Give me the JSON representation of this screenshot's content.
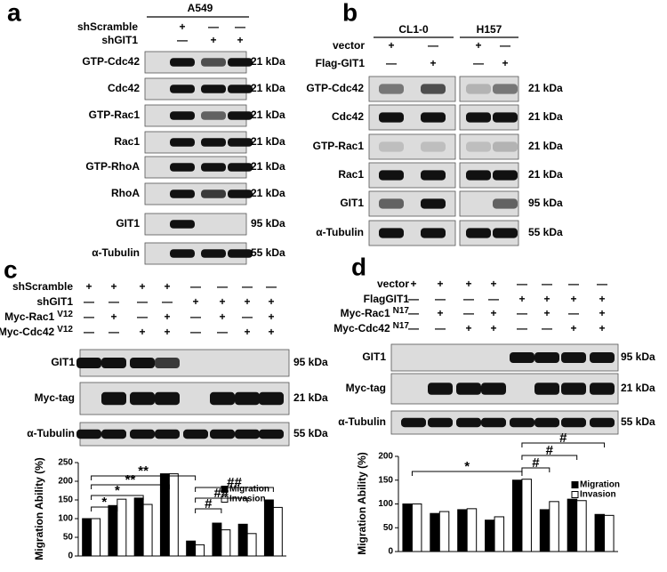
{
  "panels": {
    "a": {
      "letter": "a",
      "header": "A549",
      "conditions": [
        {
          "label": "shScramble",
          "signs": [
            "+",
            "—",
            "—"
          ]
        },
        {
          "label": "shGIT1",
          "signs": [
            "—",
            "+",
            "+"
          ]
        }
      ],
      "blots": [
        {
          "label": "GTP-Cdc42",
          "size": "21 kDa"
        },
        {
          "label": "Cdc42",
          "size": "21 kDa"
        },
        {
          "label": "GTP-Rac1",
          "size": "21 kDa"
        },
        {
          "label": "Rac1",
          "size": "21 kDa"
        },
        {
          "label": "GTP-RhoA",
          "size": "21 kDa"
        },
        {
          "label": "RhoA",
          "size": "21 kDa"
        },
        {
          "label": "GIT1",
          "size": "95 kDa"
        },
        {
          "label": "α-Tubulin",
          "size": "55 kDa"
        }
      ]
    },
    "b": {
      "letter": "b",
      "groups": [
        "CL1-0",
        "H157"
      ],
      "conditions": [
        {
          "label": "vector",
          "signs": [
            "+",
            "—",
            "+",
            "—"
          ]
        },
        {
          "label": "Flag-GIT1",
          "signs": [
            "—",
            "+",
            "—",
            "+"
          ]
        }
      ],
      "blots": [
        {
          "label": "GTP-Cdc42",
          "size": "21 kDa"
        },
        {
          "label": "Cdc42",
          "size": "21 kDa"
        },
        {
          "label": "GTP-Rac1",
          "size": "21 kDa"
        },
        {
          "label": "Rac1",
          "size": "21 kDa"
        },
        {
          "label": "GIT1",
          "size": "95 kDa"
        },
        {
          "label": "α-Tubulin",
          "size": "55 kDa"
        }
      ]
    },
    "c": {
      "letter": "c",
      "conditions": [
        {
          "label": "shScramble",
          "signs": [
            "+",
            "+",
            "+",
            "+",
            "—",
            "—",
            "—",
            "—"
          ]
        },
        {
          "label": "shGIT1",
          "signs": [
            "—",
            "—",
            "—",
            "—",
            "+",
            "+",
            "+",
            "+"
          ]
        },
        {
          "label": "Myc-Rac1",
          "sup": "V12",
          "signs": [
            "—",
            "+",
            "—",
            "+",
            "—",
            "+",
            "—",
            "+"
          ]
        },
        {
          "label": "Myc-Cdc42",
          "sup": "V12",
          "signs": [
            "—",
            "—",
            "+",
            "+",
            "—",
            "—",
            "+",
            "+"
          ]
        }
      ],
      "blots": [
        {
          "label": "GIT1",
          "size": "95 kDa"
        },
        {
          "label": "Myc-tag",
          "size": "21 kDa"
        },
        {
          "label": "α-Tubulin",
          "size": "55 kDa"
        }
      ]
    },
    "d": {
      "letter": "d",
      "conditions": [
        {
          "label": "vector",
          "signs": [
            "+",
            "+",
            "+",
            "+",
            "—",
            "—",
            "—",
            "—"
          ]
        },
        {
          "label": "FlagGIT1",
          "signs": [
            "—",
            "—",
            "—",
            "—",
            "+",
            "+",
            "+",
            "+"
          ]
        },
        {
          "label": "Myc-Rac1",
          "sup": "N17",
          "signs": [
            "—",
            "+",
            "—",
            "+",
            "—",
            "+",
            "—",
            "+"
          ]
        },
        {
          "label": "Myc-Cdc42",
          "sup": "N17",
          "signs": [
            "—",
            "—",
            "+",
            "+",
            "—",
            "—",
            "+",
            "+"
          ]
        }
      ],
      "blots": [
        {
          "label": "GIT1",
          "size": "95 kDa"
        },
        {
          "label": "Myc-tag",
          "size": "21 kDa"
        },
        {
          "label": "α-Tubulin",
          "size": "55 kDa"
        }
      ]
    }
  },
  "chart_data": [
    {
      "type": "bar",
      "y_label": "Migration Ability (%)",
      "ylim": [
        0,
        250
      ],
      "yticks": [
        0,
        50,
        100,
        150,
        200,
        250
      ],
      "series": [
        {
          "name": "Migration",
          "color": "#000000",
          "values": [
            100,
            135,
            155,
            220,
            40,
            88,
            85,
            150
          ]
        },
        {
          "name": "Invasion",
          "color": "#ffffff",
          "values": [
            100,
            152,
            138,
            220,
            30,
            70,
            60,
            130
          ]
        }
      ],
      "annotations": [
        "**",
        "**",
        "*",
        "*",
        "##",
        "##",
        "#"
      ]
    },
    {
      "type": "bar",
      "y_label": "Migration Ability (%)",
      "ylim": [
        0,
        200
      ],
      "yticks": [
        0,
        50,
        100,
        150,
        200
      ],
      "series": [
        {
          "name": "Migration",
          "color": "#000000",
          "values": [
            100,
            80,
            88,
            66,
            150,
            88,
            110,
            78
          ]
        },
        {
          "name": "Invasion",
          "color": "#ffffff",
          "values": [
            100,
            84,
            90,
            73,
            152,
            105,
            107,
            76
          ]
        }
      ],
      "annotations": [
        "*",
        "#",
        "#",
        "#"
      ]
    }
  ]
}
